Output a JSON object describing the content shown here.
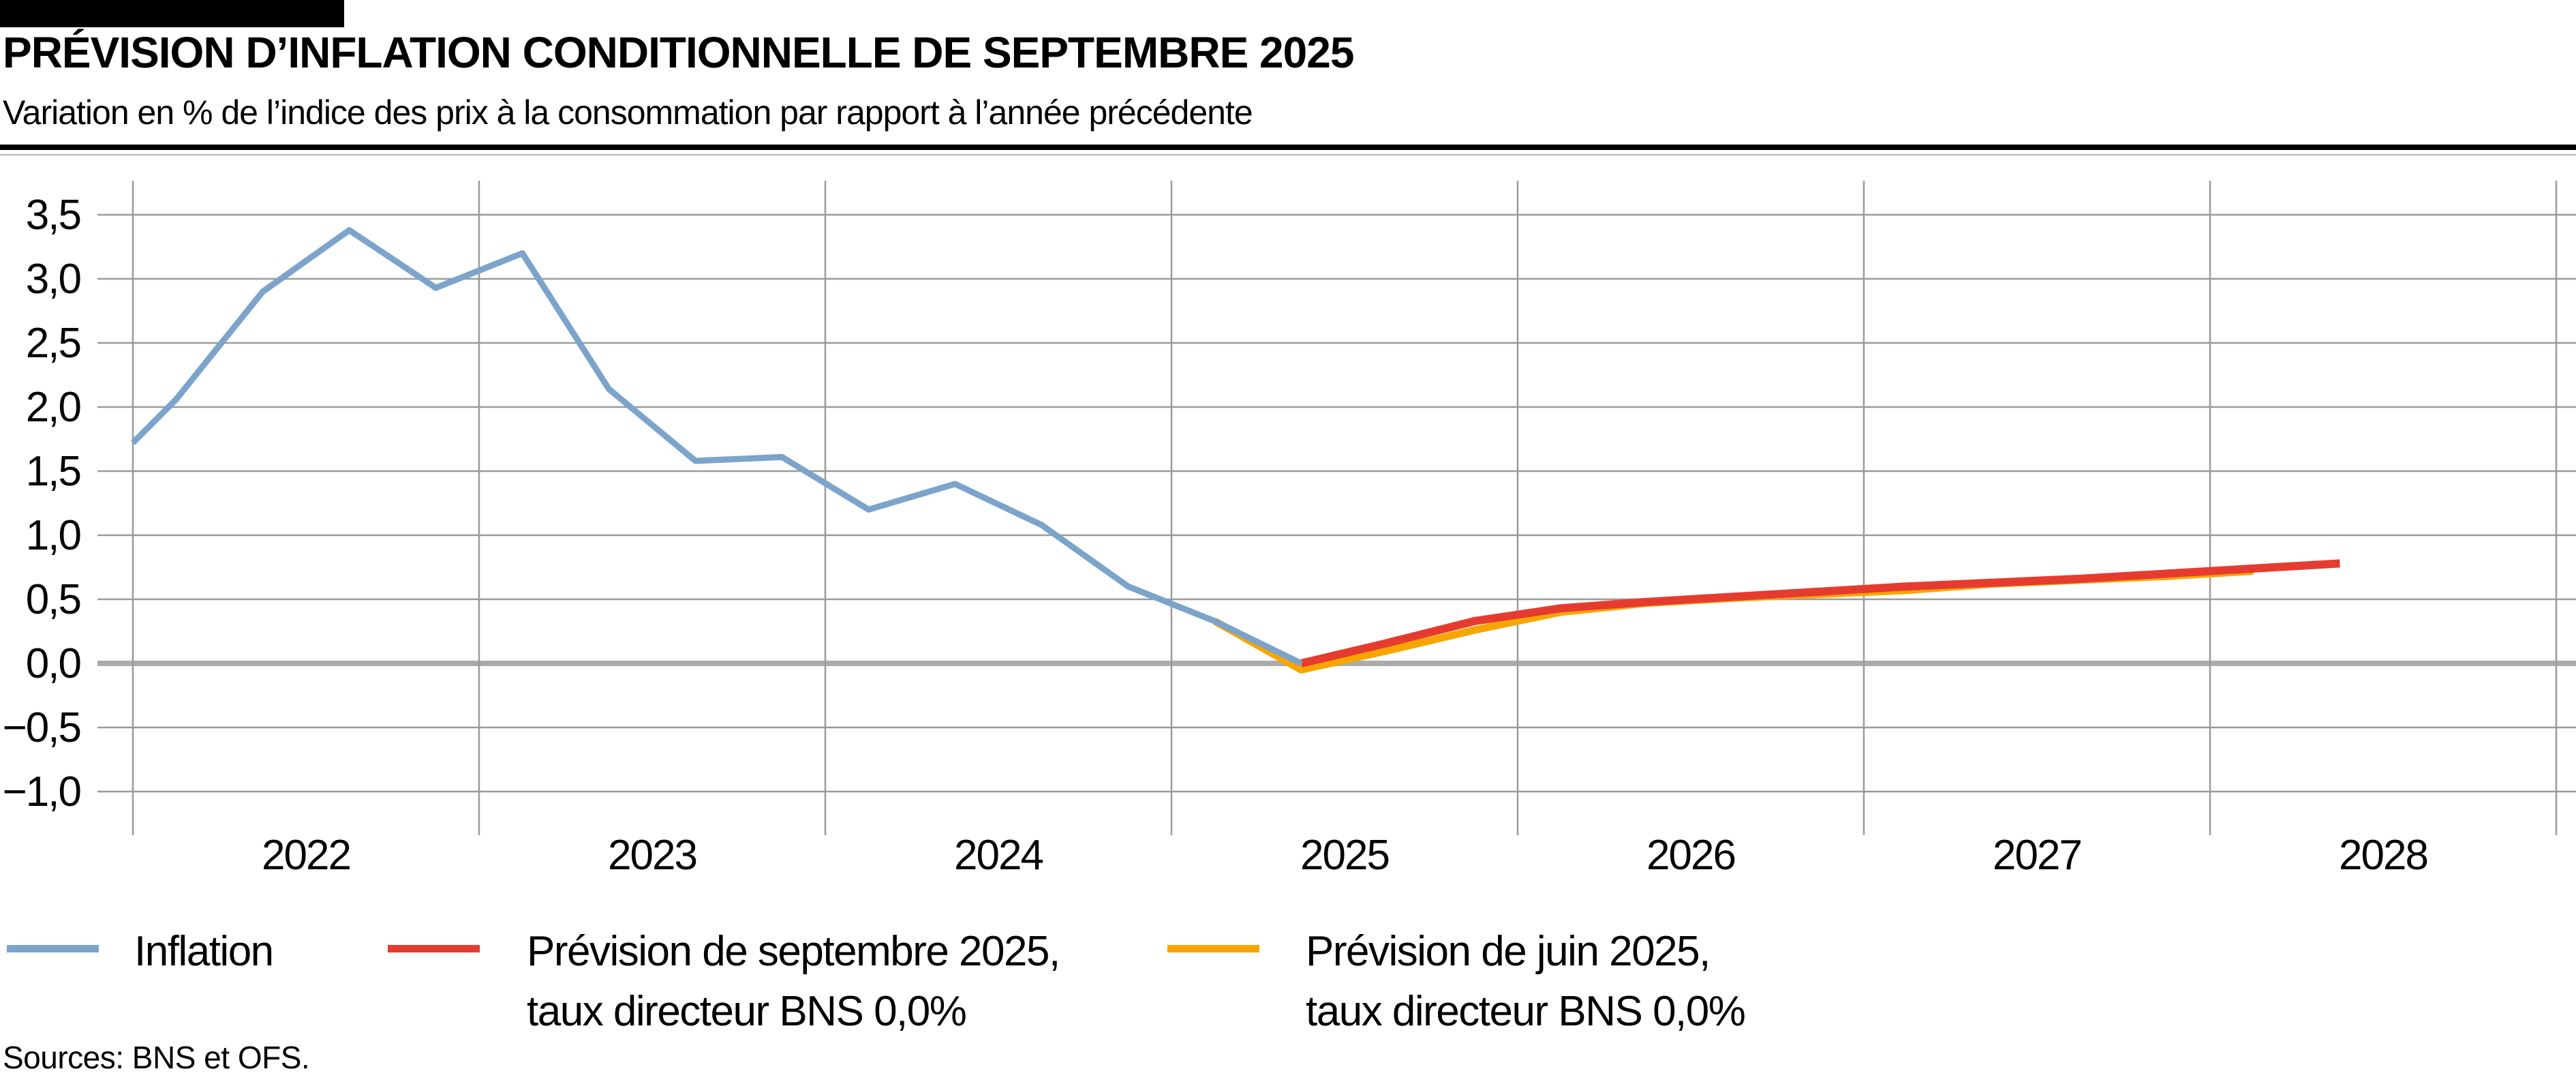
{
  "header": {
    "title": "PRÉVISION D’INFLATION CONDITIONNELLE DE SEPTEMBRE 2025",
    "subtitle": "Variation en % de l’indice des prix à la consommation par rapport à l’année précédente"
  },
  "legend": {
    "items": [
      {
        "key": "inflation",
        "line1": "Inflation",
        "line2": "",
        "color": "#7ca4cb"
      },
      {
        "key": "prevision-septembre-2025",
        "line1": "Prévision de septembre 2025,",
        "line2": "taux directeur BNS 0,0%",
        "color": "#e63c30"
      },
      {
        "key": "prevision-juin-2025",
        "line1": "Prévision de juin 2025,",
        "line2": "taux directeur BNS 0,0%",
        "color": "#f7a600"
      }
    ]
  },
  "footer": {
    "source_note": "Sources: BNS et OFS."
  },
  "chart_data": {
    "type": "line",
    "title": "Prévision d’inflation conditionnelle de septembre 2025",
    "subtitle": "Variation en % de l’indice des prix à la consommation par rapport à l’année précédente",
    "unit": "%",
    "x_range": [
      2021.9,
      2029.06
    ],
    "ylim": [
      -1.25,
      3.78
    ],
    "grid": true,
    "grid_color": "#9a9a9a",
    "zero_line_color": "#ababab",
    "legend_position": "bottom",
    "x_gridlines": [
      2022,
      2023,
      2024,
      2025,
      2026,
      2027,
      2028,
      2029
    ],
    "x_ticks": [
      {
        "label": "2022",
        "value": 2022.5
      },
      {
        "label": "2023",
        "value": 2023.5
      },
      {
        "label": "2024",
        "value": 2024.5
      },
      {
        "label": "2025",
        "value": 2025.5
      },
      {
        "label": "2026",
        "value": 2026.5
      },
      {
        "label": "2027",
        "value": 2027.5
      },
      {
        "label": "2028",
        "value": 2028.5
      }
    ],
    "y_ticks": [
      {
        "label": "3,5",
        "value": 3.5
      },
      {
        "label": "3,0",
        "value": 3.0
      },
      {
        "label": "2,5",
        "value": 2.5
      },
      {
        "label": "2,0",
        "value": 2.0
      },
      {
        "label": "1,5",
        "value": 1.5
      },
      {
        "label": "1,0",
        "value": 1.0
      },
      {
        "label": "0,5",
        "value": 0.5
      },
      {
        "label": "0,0",
        "value": 0.0
      },
      {
        "label": "−0,5",
        "value": -0.5
      },
      {
        "label": "−1,0",
        "value": -1.0
      }
    ],
    "series": [
      {
        "key": "inflation",
        "name": "Inflation",
        "color": "#7ca4cb",
        "stroke_width": 9,
        "points": [
          [
            2022.0,
            1.72
          ],
          [
            2022.125,
            2.06
          ],
          [
            2022.375,
            2.9
          ],
          [
            2022.625,
            3.38
          ],
          [
            2022.875,
            2.93
          ],
          [
            2023.125,
            3.2
          ],
          [
            2023.375,
            2.14
          ],
          [
            2023.625,
            1.58
          ],
          [
            2023.875,
            1.61
          ],
          [
            2024.125,
            1.2
          ],
          [
            2024.375,
            1.4
          ],
          [
            2024.625,
            1.08
          ],
          [
            2024.875,
            0.6
          ],
          [
            2025.125,
            0.33
          ],
          [
            2025.375,
            0.0
          ]
        ]
      },
      {
        "key": "prevision-septembre-2025",
        "name": "Prévision de septembre 2025, taux directeur BNS 0,0%",
        "color": "#e63c30",
        "stroke_width": 12,
        "points": [
          [
            2025.375,
            0.0
          ],
          [
            2025.625,
            0.16
          ],
          [
            2025.875,
            0.33
          ],
          [
            2026.125,
            0.43
          ],
          [
            2026.375,
            0.48
          ],
          [
            2026.625,
            0.52
          ],
          [
            2026.875,
            0.56
          ],
          [
            2027.125,
            0.6
          ],
          [
            2027.375,
            0.63
          ],
          [
            2027.625,
            0.66
          ],
          [
            2027.875,
            0.7
          ],
          [
            2028.125,
            0.74
          ],
          [
            2028.375,
            0.78
          ]
        ]
      },
      {
        "key": "prevision-juin-2025",
        "name": "Prévision de juin 2025, taux directeur BNS 0,0%",
        "color": "#f7a600",
        "stroke_width": 11,
        "points": [
          [
            2025.125,
            0.33
          ],
          [
            2025.375,
            -0.05
          ],
          [
            2025.625,
            0.1
          ],
          [
            2025.875,
            0.26
          ],
          [
            2026.125,
            0.4
          ],
          [
            2026.375,
            0.47
          ],
          [
            2026.625,
            0.51
          ],
          [
            2026.875,
            0.54
          ],
          [
            2027.125,
            0.57
          ],
          [
            2027.375,
            0.62
          ],
          [
            2027.625,
            0.65
          ],
          [
            2027.875,
            0.68
          ],
          [
            2028.125,
            0.72
          ]
        ]
      }
    ]
  }
}
